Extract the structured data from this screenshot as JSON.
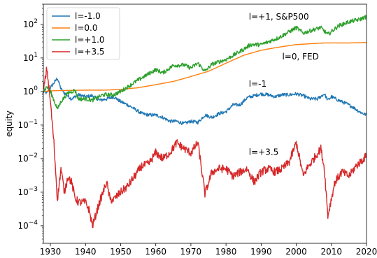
{
  "chart_data": {
    "type": "line",
    "title": "",
    "xlabel": "",
    "ylabel": "equity",
    "yscale": "log",
    "xlim": [
      1928,
      2020
    ],
    "ylim": [
      3e-05,
      400
    ],
    "x_ticks": [
      1930,
      1940,
      1950,
      1960,
      1970,
      1980,
      1990,
      2000,
      2010,
      2020
    ],
    "x_tick_labels": [
      "1930",
      "1940",
      "1950",
      "1960",
      "1970",
      "1980",
      "1990",
      "2000",
      "2010",
      "2020"
    ],
    "y_ticks": [
      0.0001,
      0.001,
      0.01,
      0.1,
      1,
      10,
      100
    ],
    "y_tick_labels": [
      {
        "base": "10",
        "exp": "−4"
      },
      {
        "base": "10",
        "exp": "−3"
      },
      {
        "base": "10",
        "exp": "−2"
      },
      {
        "base": "10",
        "exp": "−1"
      },
      {
        "base": "10",
        "exp": "0"
      },
      {
        "base": "10",
        "exp": "1"
      },
      {
        "base": "10",
        "exp": "2"
      }
    ],
    "grid": false,
    "legend_position": "top-left",
    "series": [
      {
        "name": "l=-1.0",
        "color": "#1f77b4",
        "x": [
          1928,
          1929,
          1930,
          1931,
          1932,
          1933,
          1934,
          1936,
          1938,
          1940,
          1942,
          1944,
          1946,
          1948,
          1950,
          1952,
          1954,
          1956,
          1958,
          1960,
          1962,
          1964,
          1966,
          1968,
          1970,
          1972,
          1974,
          1976,
          1978,
          1980,
          1982,
          1984,
          1986,
          1988,
          1990,
          1992,
          1994,
          1996,
          1998,
          2000,
          2002,
          2004,
          2006,
          2008,
          2009,
          2010,
          2012,
          2014,
          2016,
          2018,
          2020
        ],
        "y": [
          1.0,
          0.9,
          1.3,
          1.8,
          2.5,
          1.2,
          0.9,
          0.6,
          0.8,
          0.7,
          0.75,
          0.55,
          0.6,
          0.7,
          0.5,
          0.4,
          0.3,
          0.22,
          0.2,
          0.2,
          0.17,
          0.13,
          0.13,
          0.11,
          0.13,
          0.12,
          0.2,
          0.17,
          0.22,
          0.25,
          0.4,
          0.4,
          0.65,
          0.75,
          0.85,
          0.8,
          0.7,
          0.8,
          0.8,
          0.85,
          0.75,
          0.6,
          0.6,
          0.85,
          0.55,
          0.7,
          0.55,
          0.45,
          0.35,
          0.25,
          0.2
        ]
      },
      {
        "name": "l=0.0",
        "color": "#ff7f0e",
        "x": [
          1928,
          1930,
          1935,
          1940,
          1945,
          1950,
          1955,
          1960,
          1965,
          1970,
          1975,
          1980,
          1985,
          1990,
          1995,
          2000,
          2005,
          2008,
          2010,
          2015,
          2020
        ],
        "y": [
          1.0,
          1.05,
          1.08,
          1.1,
          1.1,
          1.15,
          1.3,
          1.6,
          2.0,
          2.8,
          4.0,
          7.0,
          12,
          17,
          21,
          25,
          27,
          28,
          28,
          28,
          29
        ]
      },
      {
        "name": "l=+1.0",
        "color": "#2ca02c",
        "x": [
          1928,
          1929,
          1930,
          1931,
          1932,
          1933,
          1935,
          1937,
          1938,
          1940,
          1942,
          1945,
          1948,
          1950,
          1955,
          1960,
          1962,
          1965,
          1968,
          1970,
          1972,
          1974,
          1976,
          1980,
          1985,
          1987,
          1990,
          1995,
          2000,
          2002,
          2005,
          2007,
          2009,
          2012,
          2015,
          2018,
          2020
        ],
        "y": [
          1.0,
          1.4,
          1.0,
          0.55,
          0.3,
          0.5,
          0.9,
          1.1,
          0.6,
          0.6,
          0.55,
          0.8,
          0.8,
          1.0,
          2.2,
          4.5,
          3.6,
          6.0,
          6.2,
          5.0,
          7.0,
          4.0,
          6.5,
          9.0,
          18,
          25,
          25,
          40,
          80,
          55,
          70,
          80,
          50,
          90,
          120,
          140,
          170
        ]
      },
      {
        "name": "l=+3.5",
        "color": "#d62728",
        "x": [
          1928,
          1929,
          1930,
          1931,
          1932,
          1933,
          1934,
          1935,
          1936,
          1937,
          1938,
          1940,
          1941,
          1942,
          1944,
          1946,
          1947,
          1948,
          1950,
          1952,
          1954,
          1956,
          1958,
          1960,
          1962,
          1964,
          1966,
          1968,
          1970,
          1972,
          1974,
          1976,
          1978,
          1980,
          1982,
          1984,
          1986,
          1988,
          1990,
          1992,
          1994,
          1996,
          1998,
          2000,
          2002,
          2003,
          2005,
          2007,
          2008,
          2009,
          2011,
          2013,
          2015,
          2017,
          2020
        ],
        "y": [
          1.0,
          5.0,
          0.5,
          0.03,
          0.0006,
          0.005,
          0.001,
          0.003,
          0.002,
          0.0007,
          0.0005,
          0.0005,
          0.0003,
          0.0001,
          0.0005,
          0.002,
          0.0006,
          0.0006,
          0.001,
          0.0015,
          0.003,
          0.006,
          0.007,
          0.015,
          0.01,
          0.015,
          0.03,
          0.02,
          0.015,
          0.03,
          0.0009,
          0.004,
          0.005,
          0.005,
          0.003,
          0.004,
          0.005,
          0.002,
          0.004,
          0.005,
          0.004,
          0.005,
          0.008,
          0.03,
          0.003,
          0.005,
          0.01,
          0.02,
          0.005,
          0.0002,
          0.002,
          0.004,
          0.003,
          0.006,
          0.012
        ]
      }
    ],
    "annotations": [
      {
        "text": "l=+1, S&P500",
        "x": 1986.5,
        "y": 140
      },
      {
        "text": "l=0, FED",
        "x": 1996,
        "y": 9
      },
      {
        "text": "l=-1",
        "x": 1986.5,
        "y": 1.4
      },
      {
        "text": "l=+3.5",
        "x": 1986.5,
        "y": 0.013
      }
    ]
  }
}
